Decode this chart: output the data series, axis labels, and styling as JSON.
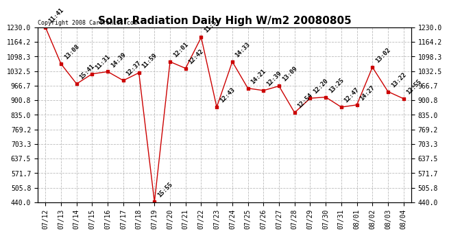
{
  "title": "Solar Radiation Daily High W/m2 20080805",
  "copyright": "Copyright 2008 Cartronics.com",
  "dates": [
    "07/12",
    "07/13",
    "07/14",
    "07/15",
    "07/16",
    "07/17",
    "07/18",
    "07/19",
    "07/20",
    "07/21",
    "07/22",
    "07/23",
    "07/24",
    "07/25",
    "07/26",
    "07/27",
    "07/28",
    "07/29",
    "07/30",
    "07/31",
    "08/01",
    "08/02",
    "08/03",
    "08/04"
  ],
  "values": [
    1230,
    1065,
    975,
    1020,
    1030,
    990,
    1025,
    442,
    1075,
    1045,
    1185,
    870,
    1075,
    955,
    945,
    965,
    845,
    910,
    915,
    870,
    880,
    1050,
    940,
    908
  ],
  "time_labels": [
    "11:41",
    "13:08",
    "15:41",
    "11:31",
    "14:39",
    "12:37",
    "11:59",
    "15:55",
    "12:01",
    "12:42",
    "11:33",
    "12:43",
    "14:33",
    "14:21",
    "12:39",
    "13:09",
    "12:54",
    "12:20",
    "13:25",
    "12:47",
    "14:27",
    "13:02",
    "13:22",
    "12:55"
  ],
  "ylim": [
    440.0,
    1230.0
  ],
  "yticks": [
    440.0,
    505.8,
    571.7,
    637.5,
    703.3,
    769.2,
    835.0,
    900.8,
    966.7,
    1032.5,
    1098.3,
    1164.2,
    1230.0
  ],
  "line_color": "#cc0000",
  "marker_color": "#cc0000",
  "bg_color": "#ffffff",
  "grid_color": "#bbbbbb",
  "title_fontsize": 11,
  "label_fontsize": 6.5,
  "tick_fontsize": 7,
  "copyright_fontsize": 6
}
